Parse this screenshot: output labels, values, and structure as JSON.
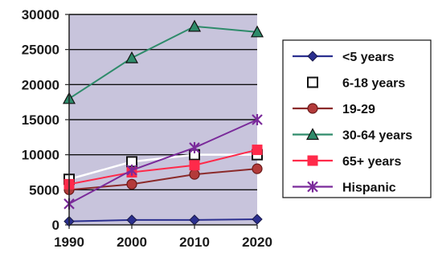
{
  "chart_data": {
    "type": "line",
    "title": "",
    "xlabel": "",
    "ylabel": "",
    "x": [
      "1990",
      "2000",
      "2010",
      "2020"
    ],
    "ylim": [
      0,
      30000
    ],
    "yticks": [
      "0",
      "5000",
      "10000",
      "15000",
      "20000",
      "25000",
      "30000"
    ],
    "grid": "horizontal",
    "legend_position": "right",
    "plot_background": "#c8c4dc",
    "series": [
      {
        "name": "<5 years",
        "values": [
          500,
          700,
          700,
          800
        ],
        "color": "#2b2f8f",
        "marker": "diamond"
      },
      {
        "name": "6-18 years",
        "values": [
          6500,
          9000,
          10000,
          10000
        ],
        "color": "#ffffff",
        "marker": "square-open"
      },
      {
        "name": "19-29",
        "values": [
          5000,
          5800,
          7200,
          8000
        ],
        "color": "#8b2a2a",
        "marker": "circle"
      },
      {
        "name": "30-64 years",
        "values": [
          18000,
          23800,
          28300,
          27500
        ],
        "color": "#2e8b6a",
        "marker": "triangle"
      },
      {
        "name": "65+ years",
        "values": [
          5800,
          7500,
          8500,
          10700
        ],
        "color": "#ff2a4a",
        "marker": "square"
      },
      {
        "name": "Hispanic",
        "values": [
          3000,
          7800,
          11000,
          15000
        ],
        "color": "#7a2a9a",
        "marker": "star"
      }
    ]
  }
}
